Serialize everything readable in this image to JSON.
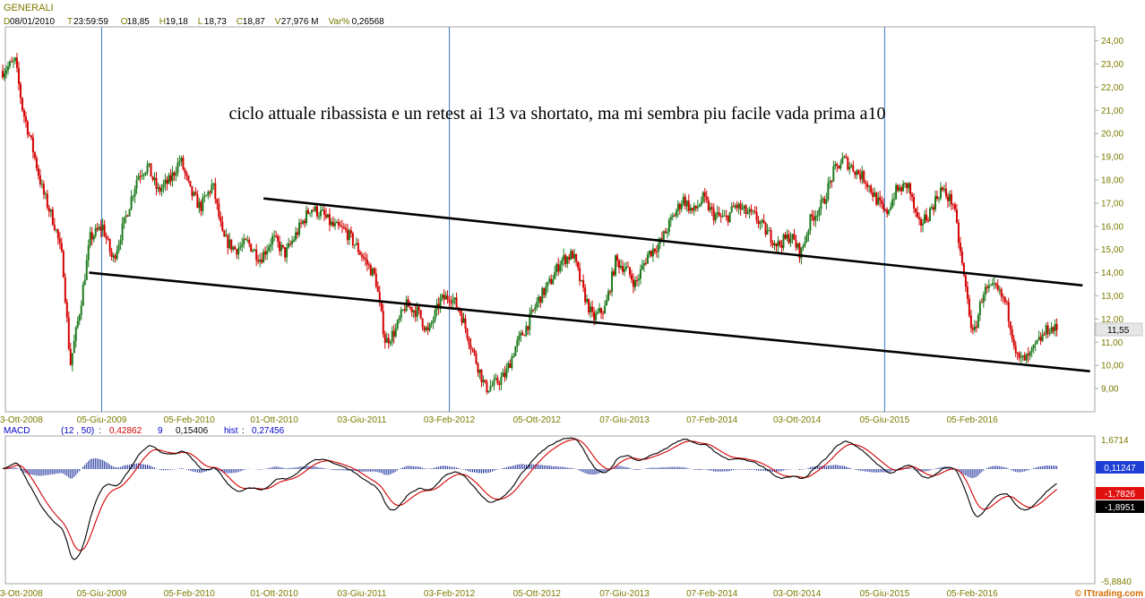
{
  "header": {
    "symbol": "GENERALI",
    "ohlc": [
      {
        "tag": "D",
        "value": "08/01/2010"
      },
      {
        "tag": "T",
        "value": "23:59:59"
      },
      {
        "tag": "O",
        "value": "18,85"
      },
      {
        "tag": "H",
        "value": "19,18"
      },
      {
        "tag": "L",
        "value": "18,73"
      },
      {
        "tag": "C",
        "value": "18,87"
      },
      {
        "tag": "V",
        "value": "27,976 M"
      },
      {
        "tag": "Var%",
        "value": "0,26568"
      }
    ]
  },
  "annotation": "ciclo attuale ribassista e un retest ai 13 va shortato, ma mi sembra piu facile vada prima a10",
  "colors": {
    "up": "#1e7a1e",
    "down": "#d40000",
    "accent_text": "#7a7a00",
    "tag_text": "#0000cc",
    "separator": "#3b78c8",
    "grid": "#a6a6a6",
    "macd_line": "#000000",
    "signal_line": "#d40000",
    "hist": "#1c2e9a"
  },
  "chart_data": [
    {
      "type": "candlestick",
      "title": "GENERALI",
      "x_ticks": [
        "3-Ott-2008",
        "05-Giu-2009",
        "05-Feb-2010",
        "01-Ott-2010",
        "03-Giu-2011",
        "03-Feb-2012",
        "05-Ott-2012",
        "07-Giu-2013",
        "07-Feb-2014",
        "03-Ott-2014",
        "05-Giu-2015",
        "05-Feb-2016"
      ],
      "y_ticks": [
        "9,00",
        "10,00",
        "11,00",
        "12,00",
        "13,00",
        "14,00",
        "15,00",
        "16,00",
        "17,00",
        "18,00",
        "19,00",
        "20,00",
        "21,00",
        "22,00",
        "23,00",
        "24,00"
      ],
      "ylim": [
        8.0,
        24.6
      ],
      "last_price_label": "11,55",
      "last_price": 11.55,
      "vertical_markers": [
        "05-Giu-2009",
        "03-Feb-2012",
        "05-Giu-2015"
      ],
      "trendlines": [
        {
          "from": {
            "x": "2010-09-01",
            "y": 17.2
          },
          "to": {
            "x": "2016-12-10",
            "y": 13.45
          }
        },
        {
          "from": {
            "x": "2009-05-01",
            "y": 14.0
          },
          "to": {
            "x": "2016-12-31",
            "y": 9.75
          }
        }
      ],
      "close_keypoints": [
        [
          "2008-09-01",
          22.7
        ],
        [
          "2008-10-06",
          23.1
        ],
        [
          "2008-10-27",
          21.0
        ],
        [
          "2008-11-17",
          19.8
        ],
        [
          "2008-12-22",
          17.5
        ],
        [
          "2009-01-26",
          16.0
        ],
        [
          "2009-02-16",
          14.5
        ],
        [
          "2009-03-09",
          10.0
        ],
        [
          "2009-04-06",
          12.5
        ],
        [
          "2009-05-04",
          15.5
        ],
        [
          "2009-06-08",
          16.0
        ],
        [
          "2009-07-06",
          14.5
        ],
        [
          "2009-08-10",
          16.3
        ],
        [
          "2009-09-14",
          18.2
        ],
        [
          "2009-10-12",
          18.6
        ],
        [
          "2009-11-09",
          17.5
        ],
        [
          "2009-12-14",
          18.0
        ],
        [
          "2010-01-11",
          18.9
        ],
        [
          "2010-02-08",
          17.5
        ],
        [
          "2010-03-08",
          16.8
        ],
        [
          "2010-04-12",
          17.8
        ],
        [
          "2010-05-10",
          15.5
        ],
        [
          "2010-06-14",
          15.0
        ],
        [
          "2010-07-19",
          15.3
        ],
        [
          "2010-08-23",
          14.6
        ],
        [
          "2010-09-27",
          15.5
        ],
        [
          "2010-11-01",
          14.8
        ],
        [
          "2010-12-06",
          15.8
        ],
        [
          "2011-01-10",
          16.8
        ],
        [
          "2011-02-14",
          16.5
        ],
        [
          "2011-03-14",
          16.0
        ],
        [
          "2011-04-18",
          15.8
        ],
        [
          "2011-05-16",
          15.2
        ],
        [
          "2011-06-13",
          14.5
        ],
        [
          "2011-07-11",
          13.8
        ],
        [
          "2011-08-08",
          11.0
        ],
        [
          "2011-09-05",
          11.5
        ],
        [
          "2011-10-03",
          12.6
        ],
        [
          "2011-11-07",
          12.3
        ],
        [
          "2011-12-05",
          11.4
        ],
        [
          "2012-01-09",
          12.8
        ],
        [
          "2012-02-06",
          13.0
        ],
        [
          "2012-03-05",
          12.3
        ],
        [
          "2012-04-09",
          10.6
        ],
        [
          "2012-05-14",
          9.0
        ],
        [
          "2012-06-11",
          9.2
        ],
        [
          "2012-07-09",
          9.6
        ],
        [
          "2012-08-06",
          10.8
        ],
        [
          "2012-09-10",
          11.8
        ],
        [
          "2012-10-08",
          12.8
        ],
        [
          "2012-11-12",
          13.6
        ],
        [
          "2012-12-10",
          14.5
        ],
        [
          "2013-01-14",
          14.8
        ],
        [
          "2013-02-11",
          13.2
        ],
        [
          "2013-03-11",
          12.0
        ],
        [
          "2013-04-15",
          12.5
        ],
        [
          "2013-05-13",
          14.5
        ],
        [
          "2013-06-10",
          14.2
        ],
        [
          "2013-07-08",
          13.5
        ],
        [
          "2013-08-12",
          14.8
        ],
        [
          "2013-09-16",
          15.3
        ],
        [
          "2013-10-14",
          16.2
        ],
        [
          "2013-11-18",
          17.2
        ],
        [
          "2013-12-16",
          16.6
        ],
        [
          "2014-01-13",
          17.2
        ],
        [
          "2014-02-10",
          16.5
        ],
        [
          "2014-03-17",
          16.3
        ],
        [
          "2014-04-14",
          16.9
        ],
        [
          "2014-05-12",
          16.6
        ],
        [
          "2014-06-09",
          16.4
        ],
        [
          "2014-07-07",
          15.8
        ],
        [
          "2014-08-11",
          15.2
        ],
        [
          "2014-09-15",
          15.6
        ],
        [
          "2014-10-13",
          14.8
        ],
        [
          "2014-11-10",
          16.3
        ],
        [
          "2014-12-15",
          17.0
        ],
        [
          "2015-01-12",
          18.3
        ],
        [
          "2015-02-09",
          18.9
        ],
        [
          "2015-03-09",
          18.5
        ],
        [
          "2015-04-13",
          18.0
        ],
        [
          "2015-05-11",
          17.2
        ],
        [
          "2015-06-08",
          16.5
        ],
        [
          "2015-07-06",
          17.5
        ],
        [
          "2015-08-10",
          17.8
        ],
        [
          "2015-09-07",
          16.0
        ],
        [
          "2015-10-05",
          16.5
        ],
        [
          "2015-11-09",
          17.6
        ],
        [
          "2015-12-14",
          17.0
        ],
        [
          "2016-01-11",
          14.0
        ],
        [
          "2016-02-08",
          11.2
        ],
        [
          "2016-03-07",
          13.2
        ],
        [
          "2016-04-11",
          13.3
        ],
        [
          "2016-05-09",
          12.7
        ],
        [
          "2016-06-13",
          10.2
        ],
        [
          "2016-07-11",
          10.3
        ],
        [
          "2016-08-08",
          11.0
        ],
        [
          "2016-09-05",
          11.6
        ],
        [
          "2016-09-30",
          11.55
        ]
      ]
    },
    {
      "type": "macd",
      "title": "MACD",
      "params": "(12 , 50)",
      "macd_value": "0,42862",
      "signal_period": "9",
      "signal_value": "0,15406",
      "hist_label": "hist",
      "hist_value": "0,27456",
      "scale_top": "1,6714",
      "scale_bottom": "-5,8840",
      "badges": [
        {
          "text": "0,11247",
          "bg": "#1e3fd6"
        },
        {
          "text": "-1,7826",
          "bg": "#e01010"
        },
        {
          "text": "-1,8951",
          "bg": "#000000"
        }
      ],
      "x_ticks": [
        "3-Ott-2008",
        "05-Giu-2009",
        "05-Feb-2010",
        "01-Ott-2010",
        "03-Giu-2011",
        "03-Feb-2012",
        "05-Ott-2012",
        "07-Giu-2013",
        "07-Feb-2014",
        "03-Ott-2014",
        "05-Giu-2015",
        "05-Feb-2016"
      ]
    }
  ],
  "footer": {
    "copyright": "© ITtrading.com"
  }
}
